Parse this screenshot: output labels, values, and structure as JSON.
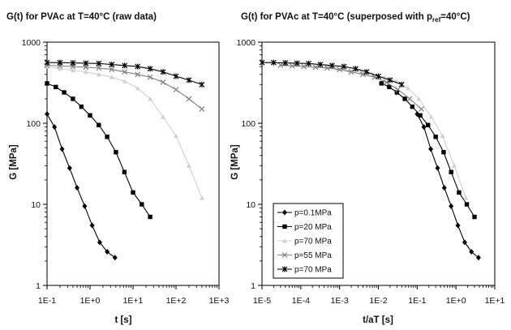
{
  "chart_data": [
    {
      "type": "line",
      "title": "G(t) for PVAc at T=40°C (raw data)",
      "xlabel": "t [s]",
      "ylabel": "G [MPa]",
      "xscale": "log",
      "yscale": "log",
      "xlim": [
        0.1,
        1000
      ],
      "ylim": [
        1,
        1000
      ],
      "xticks": [
        "1E-1",
        "1E+0",
        "1E+1",
        "1E+2",
        "1E+3"
      ],
      "yticks": [
        "1",
        "10",
        "100",
        "1000"
      ],
      "series": [
        {
          "marker": "diamond",
          "color": "#000000",
          "x": [
            0.1,
            0.149,
            0.224,
            0.335,
            0.5,
            0.75,
            1.12,
            1.68,
            2.5,
            3.8
          ],
          "y": [
            130,
            90,
            48,
            28,
            16,
            9.5,
            5.5,
            3.4,
            2.6,
            2.2
          ]
        },
        {
          "marker": "square",
          "color": "#000000",
          "x": [
            0.1,
            0.16,
            0.25,
            0.4,
            0.63,
            1.0,
            1.6,
            2.5,
            4.0,
            6.3,
            10,
            16,
            25
          ],
          "y": [
            310,
            280,
            240,
            200,
            160,
            125,
            95,
            68,
            44,
            25,
            14,
            10,
            7
          ]
        },
        {
          "marker": "triangle",
          "color": "#d0d0d0",
          "x": [
            0.1,
            0.2,
            0.4,
            0.8,
            1.6,
            3.2,
            6.4,
            12.8,
            25,
            50,
            100,
            200,
            400
          ],
          "y": [
            500,
            470,
            450,
            430,
            400,
            370,
            330,
            270,
            200,
            120,
            70,
            30,
            12
          ]
        },
        {
          "marker": "x",
          "color": "#808080",
          "x": [
            0.1,
            0.2,
            0.4,
            0.8,
            1.6,
            3.2,
            6.4,
            12.8,
            25,
            50,
            100,
            200,
            400
          ],
          "y": [
            520,
            510,
            500,
            490,
            480,
            460,
            430,
            400,
            370,
            320,
            260,
            200,
            150
          ]
        },
        {
          "marker": "star",
          "color": "#000000",
          "x": [
            0.1,
            0.2,
            0.4,
            0.8,
            1.6,
            3.2,
            6.4,
            12.8,
            25,
            50,
            100,
            200,
            400
          ],
          "y": [
            560,
            560,
            555,
            550,
            545,
            530,
            515,
            500,
            470,
            430,
            380,
            340,
            300
          ]
        }
      ]
    },
    {
      "type": "line",
      "title": "G(t) for PVAc at T=40°C (superposed with p",
      "title_sub": "ref",
      "title_end": "=40°C)",
      "xlabel": "t/aT [s]",
      "ylabel": "G [MPa]",
      "xscale": "log",
      "yscale": "log",
      "xlim": [
        1e-05,
        10
      ],
      "ylim": [
        1,
        1000
      ],
      "xticks": [
        "1E-5",
        "1E-4",
        "1E-3",
        "1E-2",
        "1E-1",
        "1E+0",
        "1E+1"
      ],
      "yticks": [
        "1",
        "10",
        "100",
        "1000"
      ],
      "legend": {
        "position": "lower-left",
        "entries": [
          "p=0.1MPa",
          "p=20 MPa",
          "p=70 MPa",
          "p=55 MPa",
          "p=70 MPa"
        ]
      },
      "series": [
        {
          "marker": "diamond",
          "color": "#000000",
          "x": [
            0.1,
            0.149,
            0.224,
            0.335,
            0.5,
            0.75,
            1.12,
            1.68,
            2.5,
            3.8
          ],
          "y": [
            130,
            90,
            48,
            28,
            16,
            9.5,
            5.5,
            3.4,
            2.6,
            2.2
          ]
        },
        {
          "marker": "square",
          "color": "#000000",
          "x": [
            0.012,
            0.019,
            0.03,
            0.048,
            0.075,
            0.12,
            0.19,
            0.3,
            0.48,
            0.75,
            1.2,
            1.9,
            3.0
          ],
          "y": [
            310,
            280,
            240,
            200,
            160,
            125,
            95,
            68,
            44,
            25,
            14,
            10,
            7
          ]
        },
        {
          "marker": "triangle",
          "color": "#d0d0d0",
          "x": [
            0.00045,
            0.0009,
            0.0018,
            0.0036,
            0.0072,
            0.0144,
            0.029,
            0.058,
            0.11,
            0.23,
            0.45,
            0.9,
            1.8
          ],
          "y": [
            500,
            470,
            450,
            430,
            400,
            370,
            330,
            270,
            200,
            120,
            70,
            30,
            12
          ]
        },
        {
          "marker": "x",
          "color": "#808080",
          "x": [
            3e-05,
            6e-05,
            0.00012,
            0.00024,
            0.00048,
            0.001,
            0.002,
            0.004,
            0.008,
            0.016,
            0.032,
            0.064,
            0.128
          ],
          "y": [
            520,
            510,
            500,
            490,
            480,
            460,
            430,
            400,
            370,
            320,
            260,
            200,
            150
          ]
        },
        {
          "marker": "star",
          "color": "#000000",
          "x": [
            1e-05,
            2e-05,
            4e-05,
            8e-05,
            0.00016,
            0.00032,
            0.00064,
            0.0013,
            0.0026,
            0.005,
            0.01,
            0.02,
            0.04
          ],
          "y": [
            560,
            560,
            555,
            550,
            545,
            530,
            515,
            500,
            470,
            430,
            380,
            340,
            300
          ]
        }
      ]
    }
  ]
}
